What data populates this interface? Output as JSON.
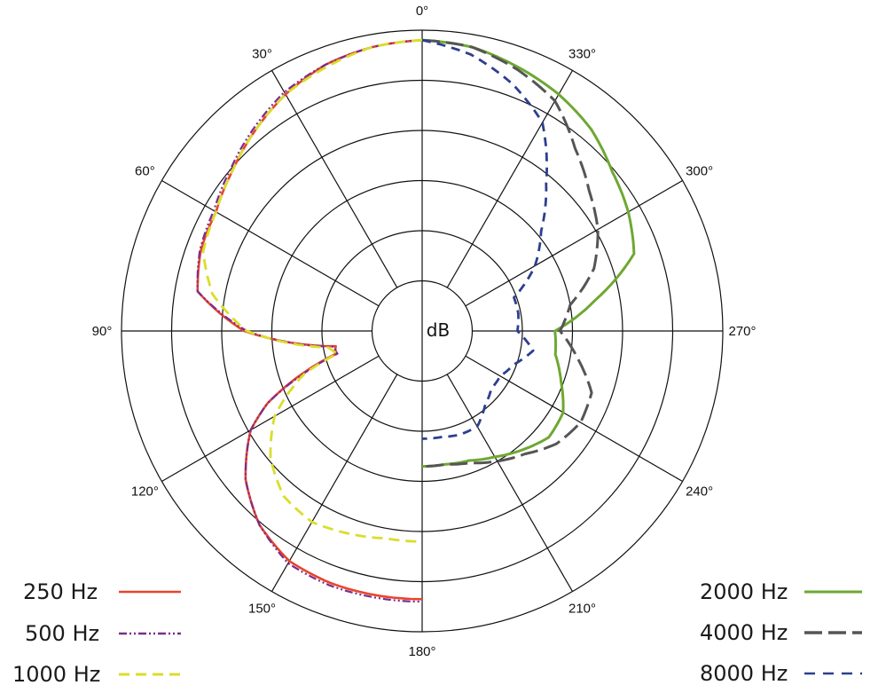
{
  "chart_data": {
    "type": "polar-line",
    "center_label": "dB",
    "angle_labels": [
      "0°",
      "30°",
      "60°",
      "90°",
      "120°",
      "150°",
      "180°",
      "210°",
      "240°",
      "270°",
      "300°",
      "330°"
    ],
    "series": [
      {
        "name": "250 Hz",
        "color": "#e8452c",
        "dash": "solid",
        "side": "left",
        "angles_deg": [
          0,
          10,
          20,
          30,
          40,
          50,
          60,
          70,
          80,
          90,
          100,
          105,
          110,
          115,
          120,
          130,
          140,
          150,
          160,
          170,
          180
        ],
        "radius_ring": [
          5.8,
          5.75,
          5.65,
          5.45,
          5.2,
          4.95,
          4.75,
          4.7,
          4.55,
          3.55,
          1.75,
          1.8,
          2.6,
          3.4,
          3.95,
          4.6,
          5.05,
          5.3,
          5.35,
          5.35,
          5.35
        ]
      },
      {
        "name": "500 Hz",
        "color": "#7b2d8e",
        "dash": "dashdot",
        "side": "left",
        "angles_deg": [
          0,
          10,
          20,
          30,
          40,
          50,
          60,
          70,
          80,
          90,
          100,
          105,
          110,
          115,
          120,
          130,
          140,
          150,
          160,
          170,
          180
        ],
        "radius_ring": [
          5.8,
          5.75,
          5.65,
          5.5,
          5.25,
          5.0,
          4.8,
          4.72,
          4.55,
          3.5,
          1.8,
          1.75,
          2.55,
          3.4,
          3.95,
          4.6,
          5.05,
          5.35,
          5.4,
          5.4,
          5.4
        ]
      },
      {
        "name": "1000 Hz",
        "color": "#d9de2b",
        "dash": "dash",
        "side": "left",
        "angles_deg": [
          0,
          10,
          20,
          30,
          40,
          50,
          60,
          70,
          80,
          90,
          100,
          105,
          110,
          120,
          130,
          140,
          150,
          160,
          170,
          180
        ],
        "radius_ring": [
          5.8,
          5.75,
          5.6,
          5.45,
          5.2,
          4.95,
          4.75,
          4.65,
          4.25,
          3.5,
          1.9,
          1.75,
          2.5,
          3.4,
          3.95,
          4.3,
          4.4,
          4.3,
          4.2,
          4.2
        ]
      },
      {
        "name": "2000 Hz",
        "color": "#6ea832",
        "dash": "solid",
        "side": "right",
        "angles_deg": [
          0,
          10,
          20,
          30,
          40,
          50,
          60,
          70,
          80,
          90,
          100,
          110,
          120,
          130,
          140,
          150,
          160,
          170,
          180
        ],
        "radius_ring": [
          5.8,
          5.75,
          5.6,
          5.45,
          5.25,
          4.95,
          4.75,
          4.5,
          3.5,
          2.65,
          2.7,
          2.95,
          3.25,
          3.3,
          3.1,
          2.9,
          2.75,
          2.7,
          2.7
        ]
      },
      {
        "name": "4000 Hz",
        "color": "#555555",
        "dash": "longdash",
        "side": "right",
        "angles_deg": [
          0,
          10,
          20,
          30,
          40,
          50,
          60,
          70,
          80,
          90,
          100,
          110,
          120,
          130,
          140,
          150,
          160,
          170,
          180
        ],
        "radius_ring": [
          5.8,
          5.75,
          5.55,
          5.3,
          4.75,
          4.35,
          4.05,
          3.65,
          3.0,
          2.75,
          3.15,
          3.6,
          3.65,
          3.5,
          3.2,
          3.0,
          2.8,
          2.7,
          2.7
        ]
      },
      {
        "name": "8000 Hz",
        "color": "#2c3f8f",
        "dash": "dash",
        "side": "right",
        "angles_deg": [
          0,
          10,
          20,
          30,
          40,
          50,
          60,
          70,
          80,
          90,
          100,
          110,
          120,
          130,
          140,
          150,
          160,
          170,
          180
        ],
        "radius_ring": [
          5.8,
          5.6,
          5.25,
          4.8,
          3.85,
          3.1,
          2.6,
          1.95,
          1.95,
          1.9,
          2.25,
          1.95,
          1.8,
          1.8,
          1.95,
          2.2,
          2.2,
          2.15,
          2.15
        ]
      }
    ]
  }
}
